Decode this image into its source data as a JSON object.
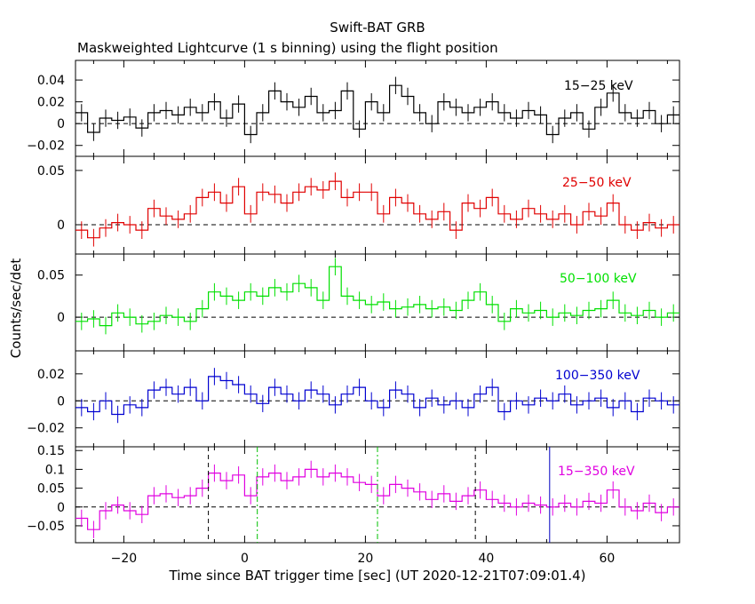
{
  "title": "Swift-BAT GRB",
  "subtitle": "Maskweighted Lightcurve (1 s binning) using the flight position",
  "xlabel": "Time since BAT trigger time [sec] (UT 2020-12-21T07:09:01.4)",
  "ylabel": "Counts/sec/det",
  "chart_data": [
    {
      "type": "line",
      "name": "15-25 keV",
      "label": "15−25 keV",
      "color": "#000000",
      "xlim": [
        -28,
        72
      ],
      "ylim": [
        -0.03,
        0.058
      ],
      "yticks": [
        {
          "v": -0.02,
          "t": "−0.02"
        },
        {
          "v": 0,
          "t": "0"
        },
        {
          "v": 0.02,
          "t": "0.02"
        },
        {
          "v": 0.04,
          "t": "0.04"
        }
      ],
      "x": [
        -28,
        -26,
        -24,
        -22,
        -20,
        -18,
        -16,
        -14,
        -12,
        -10,
        -8,
        -6,
        -4,
        -2,
        0,
        2,
        4,
        6,
        8,
        10,
        12,
        14,
        16,
        18,
        20,
        22,
        24,
        26,
        28,
        30,
        32,
        34,
        36,
        38,
        40,
        42,
        44,
        46,
        48,
        50,
        52,
        54,
        56,
        58,
        60,
        62,
        64,
        66,
        68,
        70
      ],
      "y": [
        0.01,
        -0.008,
        0.005,
        0.003,
        0.006,
        -0.004,
        0.01,
        0.012,
        0.008,
        0.015,
        0.01,
        0.02,
        0.005,
        0.018,
        -0.01,
        0.01,
        0.03,
        0.02,
        0.015,
        0.025,
        0.01,
        0.012,
        0.03,
        -0.005,
        0.02,
        0.01,
        0.035,
        0.025,
        0.01,
        0.0,
        0.02,
        0.015,
        0.01,
        0.015,
        0.02,
        0.01,
        0.005,
        0.012,
        0.008,
        -0.01,
        0.005,
        0.01,
        -0.005,
        0.015,
        0.028,
        0.01,
        0.005,
        0.012,
        0.0,
        0.008
      ]
    },
    {
      "type": "line",
      "name": "25-50 keV",
      "label": "25−50 keV",
      "color": "#e00000",
      "xlim": [
        -28,
        72
      ],
      "ylim": [
        -0.027,
        0.063
      ],
      "yticks": [
        {
          "v": 0,
          "t": "0"
        },
        {
          "v": 0.05,
          "t": "0.05"
        }
      ],
      "x": [
        -28,
        -26,
        -24,
        -22,
        -20,
        -18,
        -16,
        -14,
        -12,
        -10,
        -8,
        -6,
        -4,
        -2,
        0,
        2,
        4,
        6,
        8,
        10,
        12,
        14,
        16,
        18,
        20,
        22,
        24,
        26,
        28,
        30,
        32,
        34,
        36,
        38,
        40,
        42,
        44,
        46,
        48,
        50,
        52,
        54,
        56,
        58,
        60,
        62,
        64,
        66,
        68,
        70
      ],
      "y": [
        -0.005,
        -0.012,
        -0.003,
        0.002,
        0.0,
        -0.005,
        0.015,
        0.008,
        0.005,
        0.01,
        0.025,
        0.03,
        0.02,
        0.035,
        0.01,
        0.03,
        0.028,
        0.02,
        0.03,
        0.035,
        0.032,
        0.04,
        0.025,
        0.03,
        0.03,
        0.01,
        0.025,
        0.02,
        0.01,
        0.005,
        0.012,
        -0.005,
        0.02,
        0.015,
        0.025,
        0.01,
        0.005,
        0.015,
        0.01,
        0.005,
        0.01,
        0.0,
        0.012,
        0.008,
        0.02,
        0.0,
        -0.005,
        0.002,
        -0.003,
        0.0
      ]
    },
    {
      "type": "line",
      "name": "50-100 keV",
      "label": "50−100 keV",
      "color": "#00e000",
      "xlim": [
        -28,
        72
      ],
      "ylim": [
        -0.04,
        0.075
      ],
      "yticks": [
        {
          "v": 0,
          "t": "0"
        },
        {
          "v": 0.05,
          "t": "0.05"
        }
      ],
      "x": [
        -28,
        -26,
        -24,
        -22,
        -20,
        -18,
        -16,
        -14,
        -12,
        -10,
        -8,
        -6,
        -4,
        -2,
        0,
        2,
        4,
        6,
        8,
        10,
        12,
        14,
        16,
        18,
        20,
        22,
        24,
        26,
        28,
        30,
        32,
        34,
        36,
        38,
        40,
        42,
        44,
        46,
        48,
        50,
        52,
        54,
        56,
        58,
        60,
        62,
        64,
        66,
        68,
        70
      ],
      "y": [
        -0.005,
        -0.002,
        -0.01,
        0.005,
        0.0,
        -0.008,
        -0.005,
        0.002,
        0.0,
        -0.005,
        0.01,
        0.03,
        0.025,
        0.02,
        0.03,
        0.025,
        0.035,
        0.03,
        0.04,
        0.035,
        0.02,
        0.06,
        0.025,
        0.02,
        0.015,
        0.018,
        0.01,
        0.012,
        0.015,
        0.01,
        0.012,
        0.008,
        0.02,
        0.03,
        0.015,
        -0.005,
        0.01,
        0.005,
        0.008,
        0.0,
        0.005,
        0.002,
        0.008,
        0.01,
        0.02,
        0.005,
        0.002,
        0.008,
        0.0,
        0.005
      ]
    },
    {
      "type": "line",
      "name": "100-350 keV",
      "label": "100−350 keV",
      "color": "#0000d0",
      "xlim": [
        -28,
        72
      ],
      "ylim": [
        -0.034,
        0.037
      ],
      "yticks": [
        {
          "v": -0.02,
          "t": "−0.02"
        },
        {
          "v": 0,
          "t": "0"
        },
        {
          "v": 0.02,
          "t": "0.02"
        }
      ],
      "x": [
        -28,
        -26,
        -24,
        -22,
        -20,
        -18,
        -16,
        -14,
        -12,
        -10,
        -8,
        -6,
        -4,
        -2,
        0,
        2,
        4,
        6,
        8,
        10,
        12,
        14,
        16,
        18,
        20,
        22,
        24,
        26,
        28,
        30,
        32,
        34,
        36,
        38,
        40,
        42,
        44,
        46,
        48,
        50,
        52,
        54,
        56,
        58,
        60,
        62,
        64,
        66,
        68,
        70
      ],
      "y": [
        -0.005,
        -0.008,
        0.0,
        -0.01,
        -0.003,
        -0.005,
        0.008,
        0.01,
        0.005,
        0.01,
        0.0,
        0.018,
        0.015,
        0.012,
        0.005,
        -0.002,
        0.01,
        0.005,
        0.0,
        0.008,
        0.005,
        -0.003,
        0.005,
        0.01,
        0.0,
        -0.005,
        0.008,
        0.005,
        -0.005,
        0.002,
        -0.003,
        0.0,
        -0.005,
        0.005,
        0.01,
        -0.008,
        0.0,
        -0.003,
        0.002,
        0.0,
        0.005,
        -0.003,
        0.0,
        0.002,
        -0.005,
        0.0,
        -0.008,
        0.002,
        0.0,
        -0.003
      ]
    },
    {
      "type": "line",
      "name": "15-350 keV",
      "label": "15−350 keV",
      "color": "#e000e0",
      "xlim": [
        -28,
        72
      ],
      "ylim": [
        -0.095,
        0.16
      ],
      "yticks": [
        {
          "v": -0.05,
          "t": "−0.05"
        },
        {
          "v": 0,
          "t": "0"
        },
        {
          "v": 0.05,
          "t": "0.05"
        },
        {
          "v": 0.1,
          "t": "0.1"
        },
        {
          "v": 0.15,
          "t": "0.15"
        }
      ],
      "x": [
        -28,
        -26,
        -24,
        -22,
        -20,
        -18,
        -16,
        -14,
        -12,
        -10,
        -8,
        -6,
        -4,
        -2,
        0,
        2,
        4,
        6,
        8,
        10,
        12,
        14,
        16,
        18,
        20,
        22,
        24,
        26,
        28,
        30,
        32,
        34,
        36,
        38,
        40,
        42,
        44,
        46,
        48,
        50,
        52,
        54,
        56,
        58,
        60,
        62,
        64,
        66,
        68,
        70
      ],
      "y": [
        -0.03,
        -0.06,
        -0.01,
        0.005,
        -0.01,
        -0.02,
        0.03,
        0.035,
        0.025,
        0.03,
        0.05,
        0.09,
        0.07,
        0.085,
        0.03,
        0.08,
        0.09,
        0.07,
        0.08,
        0.1,
        0.08,
        0.09,
        0.08,
        0.065,
        0.06,
        0.03,
        0.06,
        0.05,
        0.04,
        0.02,
        0.035,
        0.015,
        0.03,
        0.045,
        0.02,
        0.01,
        0.0,
        0.01,
        0.005,
        0.0,
        0.01,
        0.0,
        0.015,
        0.01,
        0.045,
        0.0,
        -0.01,
        0.01,
        -0.015,
        0.0
      ]
    }
  ],
  "markers": {
    "black_dashed": [
      -6,
      38.2
    ],
    "green_dashdot": [
      2.1,
      22
    ],
    "solid": [
      50.5
    ]
  },
  "xticks": [
    {
      "v": -20,
      "t": "−20"
    },
    {
      "v": 0,
      "t": "0"
    },
    {
      "v": 20,
      "t": "20"
    },
    {
      "v": 40,
      "t": "40"
    },
    {
      "v": 60,
      "t": "60"
    }
  ]
}
